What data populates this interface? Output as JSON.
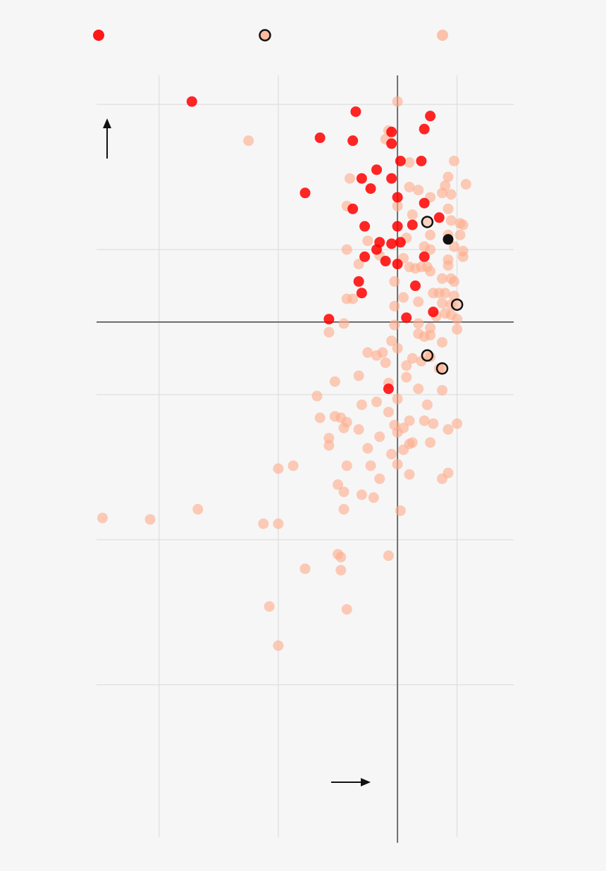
{
  "colors": {
    "background": "#f6f6f6",
    "highlight": "#ff0000",
    "other": "#ffab8a",
    "black": "#111111",
    "grid": "#d9d9d9",
    "axis": "#6e6e6e"
  },
  "legend": [
    {
      "marker": "filled-red",
      "label": ""
    },
    {
      "marker": "outlined-peach",
      "label": ""
    },
    {
      "marker": "filled-peach",
      "label": ""
    }
  ],
  "chart_data": {
    "type": "scatter",
    "title": "",
    "xlabel": "",
    "ylabel": "",
    "x_direction_icon": "right-arrow-icon",
    "y_direction_icon": "up-arrow-icon",
    "xlim": [
      -5.05,
      1.95
    ],
    "ylim": [
      -3.55,
      1.7
    ],
    "x_gridlines": [
      -4,
      -2,
      0,
      1
    ],
    "y_gridlines": [
      -2.5,
      -1.5,
      -0.5,
      0,
      0.5,
      1.5
    ],
    "zero_axes": true,
    "grid": true,
    "series": [
      {
        "style": "filled-red",
        "points": [
          [
            -3.45,
            1.52
          ],
          [
            -0.7,
            1.45
          ],
          [
            0.55,
            1.42
          ],
          [
            0.45,
            1.33
          ],
          [
            -1.3,
            1.27
          ],
          [
            -0.75,
            1.25
          ],
          [
            -0.1,
            1.31
          ],
          [
            -0.1,
            1.23
          ],
          [
            0.05,
            1.11
          ],
          [
            0.4,
            1.11
          ],
          [
            -0.35,
            1.05
          ],
          [
            -0.6,
            0.99
          ],
          [
            -0.1,
            0.99
          ],
          [
            -0.45,
            0.92
          ],
          [
            -1.55,
            0.89
          ],
          [
            0.0,
            0.86
          ],
          [
            0.45,
            0.82
          ],
          [
            -0.75,
            0.78
          ],
          [
            -0.55,
            0.66
          ],
          [
            0.25,
            0.67
          ],
          [
            0.7,
            0.72
          ],
          [
            -0.0,
            0.66
          ],
          [
            -0.3,
            0.55
          ],
          [
            -0.1,
            0.54
          ],
          [
            0.05,
            0.55
          ],
          [
            -0.35,
            0.5
          ],
          [
            -0.55,
            0.45
          ],
          [
            0.45,
            0.45
          ],
          [
            -0.2,
            0.42
          ],
          [
            0.0,
            0.4
          ],
          [
            0.3,
            0.25
          ],
          [
            -0.65,
            0.28
          ],
          [
            -0.6,
            0.2
          ],
          [
            0.6,
            0.07
          ],
          [
            0.15,
            0.03
          ],
          [
            -1.15,
            0.02
          ],
          [
            -0.15,
            -0.46
          ]
        ]
      },
      {
        "style": "outlined-peach",
        "points": [
          [
            0.5,
            0.69
          ],
          [
            1.0,
            0.12
          ],
          [
            0.5,
            -0.23
          ],
          [
            0.75,
            -0.32
          ]
        ]
      },
      {
        "style": "filled-black",
        "points": [
          [
            0.85,
            0.57
          ]
        ]
      },
      {
        "style": "filled-peach",
        "points": [
          [
            0.0,
            1.52
          ],
          [
            -2.5,
            1.25
          ],
          [
            -0.15,
            1.32
          ],
          [
            -0.2,
            1.26
          ],
          [
            0.2,
            1.1
          ],
          [
            0.95,
            1.11
          ],
          [
            -0.8,
            0.99
          ],
          [
            0.85,
            1.0
          ],
          [
            1.15,
            0.95
          ],
          [
            0.8,
            0.94
          ],
          [
            0.2,
            0.93
          ],
          [
            0.35,
            0.91
          ],
          [
            0.75,
            0.89
          ],
          [
            0.9,
            0.88
          ],
          [
            0.55,
            0.86
          ],
          [
            -0.85,
            0.8
          ],
          [
            0.85,
            0.78
          ],
          [
            0.0,
            0.8
          ],
          [
            0.25,
            0.74
          ],
          [
            0.9,
            0.7
          ],
          [
            1.05,
            0.68
          ],
          [
            1.1,
            0.67
          ],
          [
            0.55,
            0.6
          ],
          [
            0.85,
            0.6
          ],
          [
            1.05,
            0.6
          ],
          [
            -0.5,
            0.56
          ],
          [
            0.15,
            0.58
          ],
          [
            0.95,
            0.52
          ],
          [
            0.45,
            0.52
          ],
          [
            0.55,
            0.5
          ],
          [
            -0.85,
            0.5
          ],
          [
            1.1,
            0.49
          ],
          [
            -0.3,
            0.46
          ],
          [
            0.1,
            0.44
          ],
          [
            1.1,
            0.45
          ],
          [
            0.85,
            0.43
          ],
          [
            -0.65,
            0.4
          ],
          [
            0.2,
            0.38
          ],
          [
            0.3,
            0.37
          ],
          [
            0.4,
            0.38
          ],
          [
            0.5,
            0.38
          ],
          [
            0.85,
            0.39
          ],
          [
            0.55,
            0.35
          ],
          [
            0.75,
            0.3
          ],
          [
            0.9,
            0.3
          ],
          [
            0.95,
            0.28
          ],
          [
            -0.05,
            0.28
          ],
          [
            0.6,
            0.2
          ],
          [
            0.7,
            0.2
          ],
          [
            0.8,
            0.2
          ],
          [
            0.95,
            0.18
          ],
          [
            0.1,
            0.17
          ],
          [
            -0.85,
            0.16
          ],
          [
            -0.75,
            0.16
          ],
          [
            0.35,
            0.14
          ],
          [
            0.75,
            0.13
          ],
          [
            0.9,
            0.12
          ],
          [
            -0.05,
            0.11
          ],
          [
            0.8,
            0.06
          ],
          [
            0.9,
            0.05
          ],
          [
            0.65,
            0.04
          ],
          [
            1.0,
            0.02
          ],
          [
            0.35,
            -0.01
          ],
          [
            -0.05,
            -0.02
          ],
          [
            -0.9,
            -0.01
          ],
          [
            0.55,
            -0.04
          ],
          [
            1.0,
            -0.05
          ],
          [
            -1.15,
            -0.07
          ],
          [
            0.35,
            -0.08
          ],
          [
            0.45,
            -0.1
          ],
          [
            0.55,
            -0.09
          ],
          [
            0.75,
            -0.14
          ],
          [
            -0.1,
            -0.13
          ],
          [
            0.0,
            -0.18
          ],
          [
            -0.5,
            -0.21
          ],
          [
            -0.35,
            -0.23
          ],
          [
            -0.25,
            -0.21
          ],
          [
            0.25,
            -0.25
          ],
          [
            0.4,
            -0.27
          ],
          [
            0.55,
            -0.24
          ],
          [
            -0.2,
            -0.28
          ],
          [
            0.15,
            -0.3
          ],
          [
            0.7,
            -0.32
          ],
          [
            -0.65,
            -0.37
          ],
          [
            0.15,
            -0.38
          ],
          [
            -1.05,
            -0.41
          ],
          [
            -0.15,
            -0.42
          ],
          [
            0.35,
            -0.46
          ],
          [
            0.75,
            -0.47
          ],
          [
            -1.35,
            -0.51
          ],
          [
            0.0,
            -0.53
          ],
          [
            -0.35,
            -0.55
          ],
          [
            0.5,
            -0.57
          ],
          [
            -0.6,
            -0.57
          ],
          [
            -1.05,
            -0.65
          ],
          [
            -1.3,
            -0.66
          ],
          [
            -0.95,
            -0.66
          ],
          [
            -0.85,
            -0.69
          ],
          [
            -0.15,
            -0.62
          ],
          [
            0.2,
            -0.68
          ],
          [
            0.45,
            -0.68
          ],
          [
            0.6,
            -0.7
          ],
          [
            1.0,
            -0.7
          ],
          [
            0.1,
            -0.73
          ],
          [
            -0.05,
            -0.71
          ],
          [
            -0.65,
            -0.74
          ],
          [
            -0.9,
            -0.73
          ],
          [
            0.0,
            -0.76
          ],
          [
            0.85,
            -0.74
          ],
          [
            -0.3,
            -0.79
          ],
          [
            -1.15,
            -0.8
          ],
          [
            0.25,
            -0.83
          ],
          [
            0.2,
            -0.84
          ],
          [
            0.55,
            -0.83
          ],
          [
            -0.5,
            -0.87
          ],
          [
            -1.15,
            -0.85
          ],
          [
            0.1,
            -0.88
          ],
          [
            -0.1,
            -0.91
          ],
          [
            -0.85,
            -0.99
          ],
          [
            -0.45,
            -0.99
          ],
          [
            -2.0,
            -1.01
          ],
          [
            -1.75,
            -0.99
          ],
          [
            0.0,
            -0.98
          ],
          [
            0.2,
            -1.05
          ],
          [
            0.85,
            -1.04
          ],
          [
            0.75,
            -1.08
          ],
          [
            -0.3,
            -1.08
          ],
          [
            -1.0,
            -1.12
          ],
          [
            -0.9,
            -1.17
          ],
          [
            -0.6,
            -1.19
          ],
          [
            -0.4,
            -1.21
          ],
          [
            -0.9,
            -1.29
          ],
          [
            0.05,
            -1.3
          ],
          [
            -3.35,
            -1.29
          ],
          [
            -4.95,
            -1.35
          ],
          [
            -4.15,
            -1.36
          ],
          [
            -2.25,
            -1.39
          ],
          [
            -2.0,
            -1.39
          ],
          [
            -1.0,
            -1.6
          ],
          [
            -0.95,
            -1.62
          ],
          [
            -0.15,
            -1.61
          ],
          [
            -1.55,
            -1.7
          ],
          [
            -0.95,
            -1.71
          ],
          [
            -2.15,
            -1.96
          ],
          [
            -0.85,
            -1.98
          ],
          [
            -2.0,
            -2.23
          ]
        ]
      }
    ]
  }
}
